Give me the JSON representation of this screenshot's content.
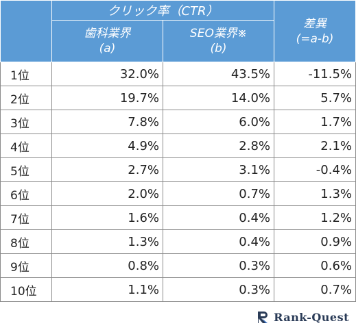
{
  "header": {
    "group_title": "クリック率（CTR）",
    "col_a_line1": "歯科業界",
    "col_a_line2": "(a)",
    "col_b_line1": "SEO業界※",
    "col_b_line2": "(b)",
    "col_diff_line1": "差異",
    "col_diff_line2": "(=a-b)"
  },
  "rows": [
    {
      "rank": "1位",
      "dental": "32.0%",
      "seo": "43.5%",
      "diff": "-11.5%"
    },
    {
      "rank": "2位",
      "dental": "19.7%",
      "seo": "14.0%",
      "diff": "5.7%"
    },
    {
      "rank": "3位",
      "dental": "7.8%",
      "seo": "6.0%",
      "diff": "1.7%"
    },
    {
      "rank": "4位",
      "dental": "4.9%",
      "seo": "2.8%",
      "diff": "2.1%"
    },
    {
      "rank": "5位",
      "dental": "2.7%",
      "seo": "3.1%",
      "diff": "-0.4%"
    },
    {
      "rank": "6位",
      "dental": "2.0%",
      "seo": "0.7%",
      "diff": "1.3%"
    },
    {
      "rank": "7位",
      "dental": "1.6%",
      "seo": "0.4%",
      "diff": "1.2%"
    },
    {
      "rank": "8位",
      "dental": "1.3%",
      "seo": "0.4%",
      "diff": "0.9%"
    },
    {
      "rank": "9位",
      "dental": "0.8%",
      "seo": "0.3%",
      "diff": "0.6%"
    },
    {
      "rank": "10位",
      "dental": "1.1%",
      "seo": "0.3%",
      "diff": "0.7%"
    }
  ],
  "brand": {
    "name": "Rank-Quest",
    "logo_icon": "rank-quest-logo-icon"
  },
  "colors": {
    "header_bg": "#5b9bd5",
    "header_text": "#ffffff",
    "brand_text": "#2a3b57"
  }
}
